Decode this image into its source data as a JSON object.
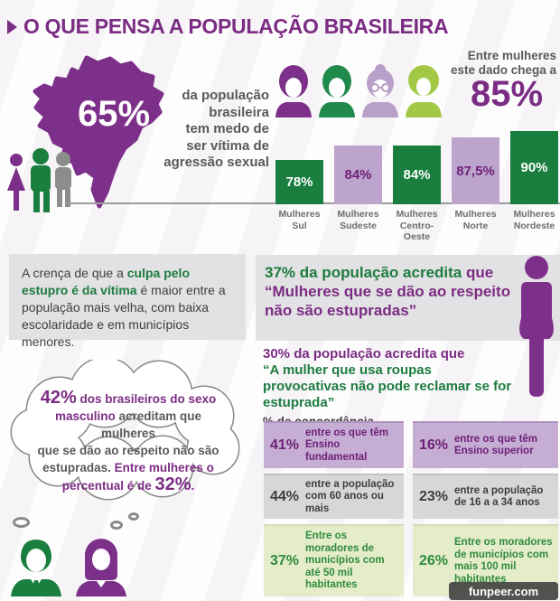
{
  "title": "O QUE PENSA A POPULAÇÃO BRASILEIRA",
  "palette": {
    "purple": "#7b2c83",
    "dark_green": "#1a7e3e",
    "light_purple_bar": "#bda4cc",
    "gray_text": "#58595b",
    "box_gray": "#e2e1e3",
    "table_purple_bg": "#c6add3",
    "table_gray_bg": "#d7d6d8",
    "table_green_bg": "#e5ecca",
    "lime_icon": "#a3c846"
  },
  "fear_stat": {
    "value": "65%",
    "caption": "da população\nbrasileira\ntem medo de\nser vítima de\nagressão sexual"
  },
  "women_note": {
    "lead": "Entre mulheres\neste dado chega a",
    "value": "85%"
  },
  "chart_data": {
    "type": "bar",
    "title": "Entre mulheres este dado chega a 85%",
    "categories": [
      [
        "Mulheres",
        "Sul"
      ],
      [
        "Mulheres",
        "Sudeste"
      ],
      [
        "Mulheres",
        "Centro-",
        "Oeste"
      ],
      [
        "Mulheres",
        "Norte"
      ],
      [
        "Mulheres",
        "Nordeste"
      ]
    ],
    "values": [
      78,
      84,
      84,
      87.5,
      90
    ],
    "display_values": [
      "78%",
      "84%",
      "84%",
      "87,5%",
      "90%"
    ],
    "bar_colors": [
      "green",
      "light-purple",
      "green",
      "light-purple",
      "green"
    ],
    "ylim": [
      60,
      95
    ],
    "grid": false,
    "value_labels": "inside"
  },
  "belief_box": {
    "pre": "A crença de que a ",
    "highlight": "culpa pelo estupro é da vítima",
    "post": " é maior entre a população mais velha, com baixa escolaridade e em municípios menores."
  },
  "stat37": {
    "line_green": "37% da população acredita ",
    "line_purple": "que “Mulheres que se dão ao respeito não são estupradas”"
  },
  "stat30": {
    "line_purple": "30% da população acredita que",
    "line_green": "“A mulher que usa roupas provocativas não pode reclamar se for estuprada”",
    "sub": "% de concordância..."
  },
  "thought": {
    "l1_big": "42%",
    "l1_rest": " dos brasileiros do sexo",
    "l2_purple": "masculino",
    "l2_rest": " acreditam que mulheres",
    "l3": "que se dão ao respeito não são",
    "l4_gray": "estupradas. ",
    "l4_purple": "Entre mulheres o",
    "l5_purple": "percentual é de ",
    "l5_big": "32%",
    "l5_end": "."
  },
  "concordance_table": {
    "rows": [
      {
        "theme": "purple",
        "cells": [
          {
            "pct": "41%",
            "text": "entre os que têm Ensino fundamental"
          },
          {
            "pct": "16%",
            "text": "entre os que têm Ensino superior"
          }
        ]
      },
      {
        "theme": "gray",
        "cells": [
          {
            "pct": "44%",
            "text": "entre a população com 60 anos ou mais"
          },
          {
            "pct": "23%",
            "text": "entre a população de 16 a a 34 anos"
          }
        ]
      },
      {
        "theme": "green",
        "cells": [
          {
            "pct": "37%",
            "text": "Entre os moradores de municípios com até 50 mil habitantes"
          },
          {
            "pct": "26%",
            "text": "Entre os moradores de municípios com mais 100 mil habitantes"
          }
        ]
      }
    ]
  },
  "watermark": "funpeer.com"
}
